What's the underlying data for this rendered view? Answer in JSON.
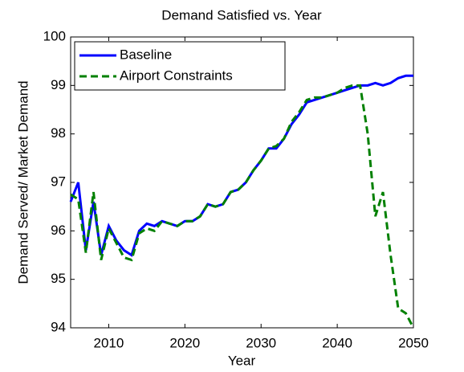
{
  "chart_data": {
    "type": "line",
    "title": "Demand Satisfied vs. Year",
    "xlabel": "Year",
    "ylabel": "Demand Served/ Market Demand",
    "x": [
      2005,
      2006,
      2007,
      2008,
      2009,
      2010,
      2011,
      2012,
      2013,
      2014,
      2015,
      2016,
      2017,
      2018,
      2019,
      2020,
      2021,
      2022,
      2023,
      2024,
      2025,
      2026,
      2027,
      2028,
      2029,
      2030,
      2031,
      2032,
      2033,
      2034,
      2035,
      2036,
      2037,
      2038,
      2039,
      2040,
      2041,
      2042,
      2043,
      2044,
      2045,
      2046,
      2047,
      2048,
      2049,
      2050
    ],
    "series": [
      {
        "name": "Baseline",
        "color": "#0000ff",
        "dash": "solid",
        "values": [
          96.6,
          97.0,
          95.6,
          96.6,
          95.5,
          96.1,
          95.8,
          95.6,
          95.5,
          96.0,
          96.15,
          96.1,
          96.2,
          96.15,
          96.1,
          96.2,
          96.2,
          96.3,
          96.55,
          96.5,
          96.55,
          96.8,
          96.85,
          97.0,
          97.25,
          97.45,
          97.7,
          97.7,
          97.9,
          98.2,
          98.4,
          98.65,
          98.7,
          98.75,
          98.8,
          98.85,
          98.9,
          98.95,
          99.0,
          99.0,
          99.05,
          99.0,
          99.05,
          99.15,
          99.2,
          99.2
        ]
      },
      {
        "name": "Airport Constraints",
        "color": "#008000",
        "dash": "dashed",
        "values": [
          96.75,
          96.65,
          95.55,
          96.8,
          95.4,
          96.05,
          95.75,
          95.45,
          95.4,
          95.95,
          96.05,
          96.0,
          96.2,
          96.15,
          96.1,
          96.2,
          96.2,
          96.3,
          96.55,
          96.5,
          96.55,
          96.8,
          96.85,
          97.0,
          97.25,
          97.45,
          97.7,
          97.75,
          97.9,
          98.25,
          98.45,
          98.7,
          98.75,
          98.75,
          98.8,
          98.85,
          98.95,
          99.0,
          99.0,
          98.0,
          96.3,
          96.8,
          95.5,
          94.4,
          94.3,
          94.0
        ]
      }
    ],
    "xlim": [
      2005,
      2050
    ],
    "xticks": [
      2010,
      2020,
      2030,
      2040,
      2050
    ],
    "ylim": [
      94,
      100
    ],
    "yticks": [
      94,
      95,
      96,
      97,
      98,
      99,
      100
    ],
    "grid": false,
    "legend": "upper left"
  }
}
